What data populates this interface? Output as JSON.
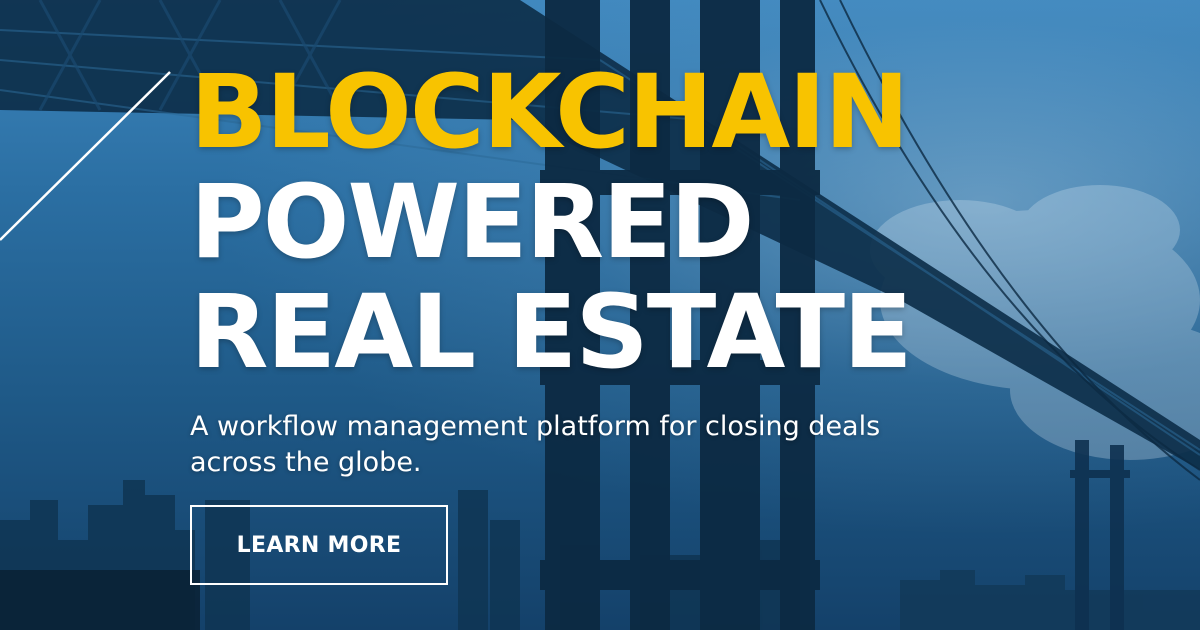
{
  "hero": {
    "headline_line1": "BLOCKCHAIN",
    "headline_line2": "POWERED",
    "headline_line3": "REAL ESTATE",
    "subtitle": "A workflow management platform for closing deals across the globe.",
    "cta_label": "LEARN MORE"
  },
  "colors": {
    "accent_yellow": "#f8c300",
    "overlay_blue": "#1f5a88",
    "text_white": "#ffffff"
  }
}
